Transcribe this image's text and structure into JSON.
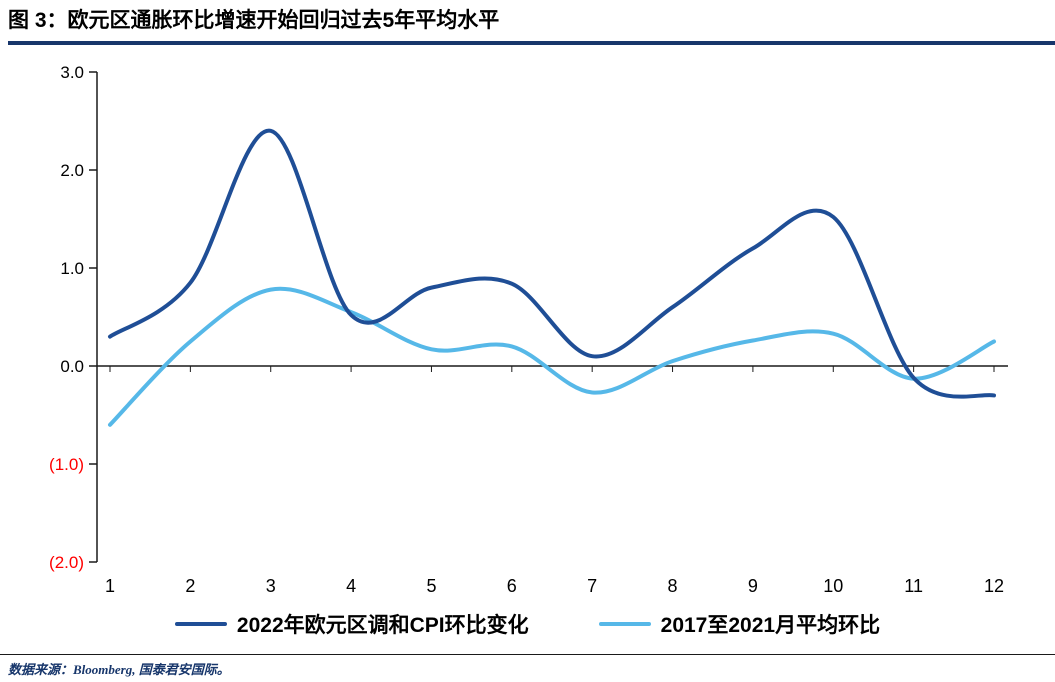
{
  "header": {
    "title": "图 3：欧元区通胀环比增速开始回归过去5年平均水平"
  },
  "colors": {
    "title_rule": "#17366b",
    "axis": "#1a1a1a",
    "tick_label": "#000000",
    "negative_tick_label": "#ff0000",
    "source_text": "#17366b",
    "footer_rule": "#1a1a1a"
  },
  "chart_data": {
    "type": "line",
    "title": "",
    "xlabel": "",
    "ylabel": "",
    "x": [
      1,
      2,
      3,
      4,
      5,
      6,
      7,
      8,
      9,
      10,
      11,
      12
    ],
    "xticklabels": [
      "1",
      "2",
      "3",
      "4",
      "5",
      "6",
      "7",
      "8",
      "9",
      "10",
      "11",
      "12"
    ],
    "ylim": [
      -2.0,
      3.0
    ],
    "yticks": [
      {
        "value": 3.0,
        "label": "3.0"
      },
      {
        "value": 2.0,
        "label": "2.0"
      },
      {
        "value": 1.0,
        "label": "1.0"
      },
      {
        "value": 0.0,
        "label": "0.0"
      },
      {
        "value": -1.0,
        "label": "(1.0)"
      },
      {
        "value": -2.0,
        "label": "(2.0)"
      }
    ],
    "grid": false,
    "legend_position": "bottom",
    "series": [
      {
        "name": "2022年欧元区调和CPI环比变化",
        "color": "#1f4e96",
        "line_width": 4,
        "values": [
          0.3,
          0.85,
          2.4,
          0.52,
          0.8,
          0.84,
          0.1,
          0.6,
          1.2,
          1.52,
          -0.12,
          -0.3
        ]
      },
      {
        "name": "2017至2021月平均环比",
        "color": "#56b8e8",
        "line_width": 4,
        "values": [
          -0.6,
          0.25,
          0.78,
          0.55,
          0.17,
          0.2,
          -0.27,
          0.05,
          0.26,
          0.33,
          -0.13,
          0.25
        ]
      }
    ]
  },
  "footer": {
    "source": "数据来源：Bloomberg, 国泰君安国际。"
  }
}
